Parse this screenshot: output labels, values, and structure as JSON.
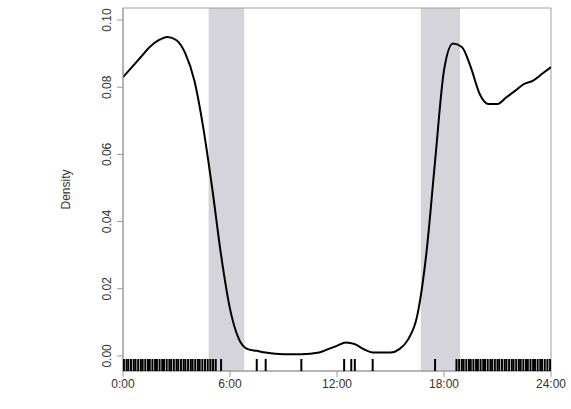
{
  "chart_data": {
    "type": "line",
    "y_label": "Density",
    "color": "#000000",
    "x": [
      0,
      0.5,
      1,
      1.5,
      2,
      2.5,
      3,
      3.5,
      4,
      4.5,
      5,
      5.5,
      6,
      6.5,
      7,
      7.5,
      8,
      9,
      10,
      11,
      11.5,
      12,
      12.5,
      13,
      13.5,
      14,
      15,
      15.5,
      16,
      16.5,
      17,
      17.5,
      18,
      18.5,
      19,
      19.5,
      20,
      20.5,
      21,
      21.5,
      22,
      22.5,
      23,
      23.5,
      24
    ],
    "values": [
      0.083,
      0.086,
      0.089,
      0.092,
      0.094,
      0.095,
      0.094,
      0.09,
      0.082,
      0.068,
      0.05,
      0.03,
      0.014,
      0.005,
      0.002,
      0.0015,
      0.001,
      0.0005,
      0.0005,
      0.001,
      0.002,
      0.003,
      0.004,
      0.0035,
      0.002,
      0.001,
      0.001,
      0.002,
      0.005,
      0.012,
      0.03,
      0.058,
      0.085,
      0.093,
      0.092,
      0.086,
      0.078,
      0.075,
      0.075,
      0.077,
      0.079,
      0.081,
      0.082,
      0.084,
      0.086
    ],
    "xlim": [
      0,
      24
    ],
    "xticks": [
      {
        "value": 0,
        "label": "0:00"
      },
      {
        "value": 6,
        "label": "6:00"
      },
      {
        "value": 12,
        "label": "12:00"
      },
      {
        "value": 18,
        "label": "18:00"
      },
      {
        "value": 24,
        "label": "24:00"
      }
    ],
    "ylim": [
      -0.0045,
      0.1036
    ],
    "yticks": [
      {
        "value": 0,
        "label": "0.00"
      },
      0.02,
      0.04,
      0.06,
      0.08,
      {
        "value": 0.1,
        "label": "0.10"
      }
    ],
    "shaded": [
      [
        4.8,
        6.8
      ],
      [
        16.7,
        18.9
      ]
    ],
    "rug": [
      0.05,
      0.2,
      0.3,
      0.45,
      0.6,
      0.7,
      0.85,
      1.0,
      1.1,
      1.25,
      1.4,
      1.5,
      1.65,
      1.8,
      1.9,
      2.05,
      2.2,
      2.3,
      2.45,
      2.6,
      2.7,
      2.85,
      3.0,
      3.1,
      3.25,
      3.4,
      3.5,
      3.65,
      3.8,
      3.9,
      4.05,
      4.2,
      4.3,
      4.45,
      4.6,
      4.75,
      4.9,
      5.05,
      5.2,
      5.5,
      7.5,
      8.0,
      10.0,
      12.4,
      12.8,
      13.0,
      14.0,
      17.5,
      18.7,
      18.85,
      19.0,
      19.1,
      19.25,
      19.4,
      19.5,
      19.65,
      19.8,
      19.9,
      20.05,
      20.2,
      20.3,
      20.45,
      20.6,
      20.7,
      20.85,
      21.0,
      21.1,
      21.25,
      21.4,
      21.5,
      21.65,
      21.8,
      21.9,
      22.05,
      22.2,
      22.3,
      22.45,
      22.6,
      22.7,
      22.85,
      23.0,
      23.1,
      23.25,
      23.4,
      23.5,
      23.65,
      23.8,
      23.95
    ]
  }
}
